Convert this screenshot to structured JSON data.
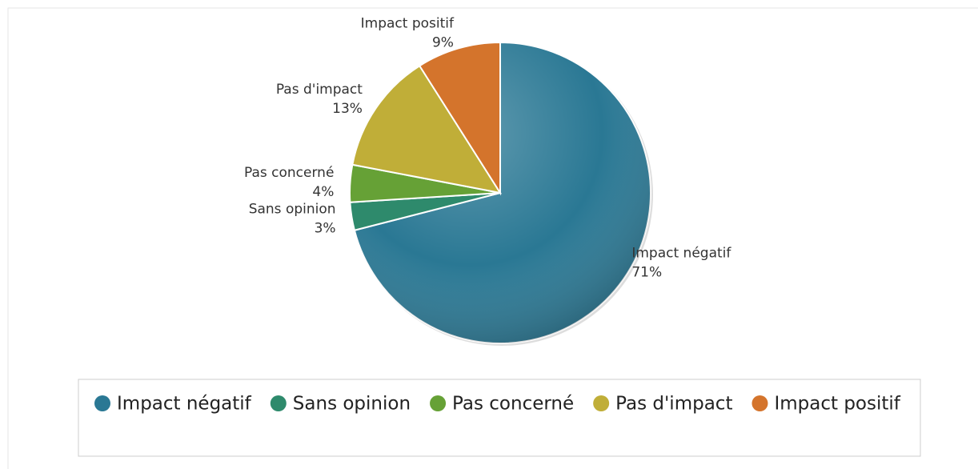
{
  "chart_data": {
    "type": "pie",
    "categories": [
      "Impact négatif",
      "Sans opinion",
      "Pas concerné",
      "Pas d'impact",
      "Impact positif"
    ],
    "values": [
      71,
      3,
      4,
      13,
      9
    ],
    "value_labels": [
      "71%",
      "3%",
      "4%",
      "13%",
      "9%"
    ],
    "colors": [
      "#2a7894",
      "#2e8a6c",
      "#66a136",
      "#c0ae38",
      "#d4742c"
    ],
    "legend": "bottom"
  }
}
